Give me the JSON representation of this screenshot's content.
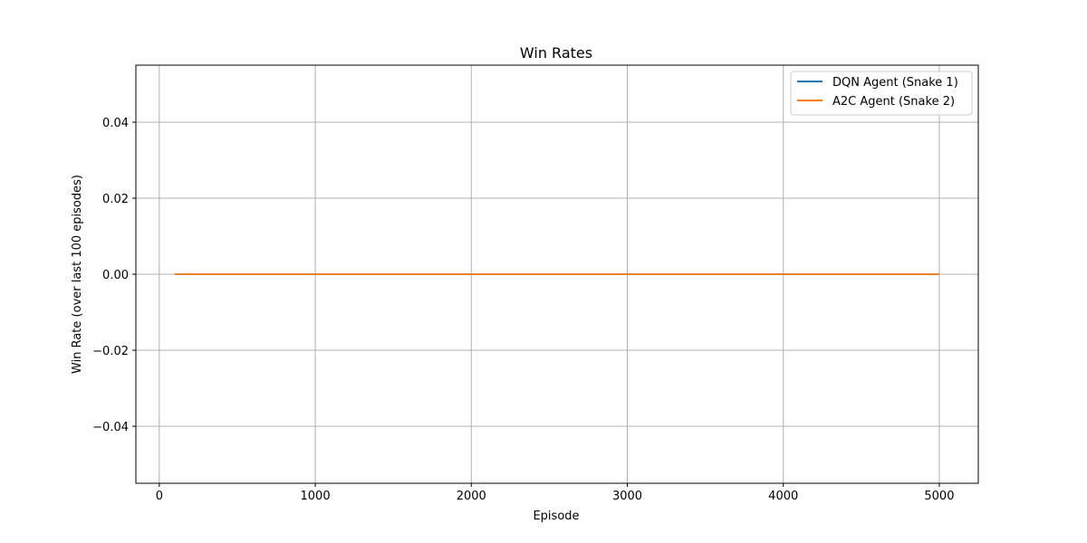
{
  "chart_data": {
    "type": "line",
    "title": "Win Rates",
    "xlabel": "Episode",
    "ylabel": "Win Rate (over last 100 episodes)",
    "xlim": [
      -150,
      5250
    ],
    "ylim": [
      -0.055,
      0.055
    ],
    "xticks": [
      0,
      1000,
      2000,
      3000,
      4000,
      5000
    ],
    "xtick_labels": [
      "0",
      "1000",
      "2000",
      "3000",
      "4000",
      "5000"
    ],
    "yticks": [
      -0.04,
      -0.02,
      0.0,
      0.02,
      0.04
    ],
    "ytick_labels": [
      "−0.04",
      "−0.02",
      "0.00",
      "0.02",
      "0.04"
    ],
    "grid": true,
    "legend_position": "top-right",
    "series": [
      {
        "name": "DQN Agent (Snake 1)",
        "color": "#1f77b4",
        "x": [
          100,
          5000
        ],
        "y": [
          0.0,
          0.0
        ]
      },
      {
        "name": "A2C Agent (Snake 2)",
        "color": "#ff7f0e",
        "x": [
          100,
          5000
        ],
        "y": [
          0.0,
          0.0
        ]
      }
    ]
  }
}
